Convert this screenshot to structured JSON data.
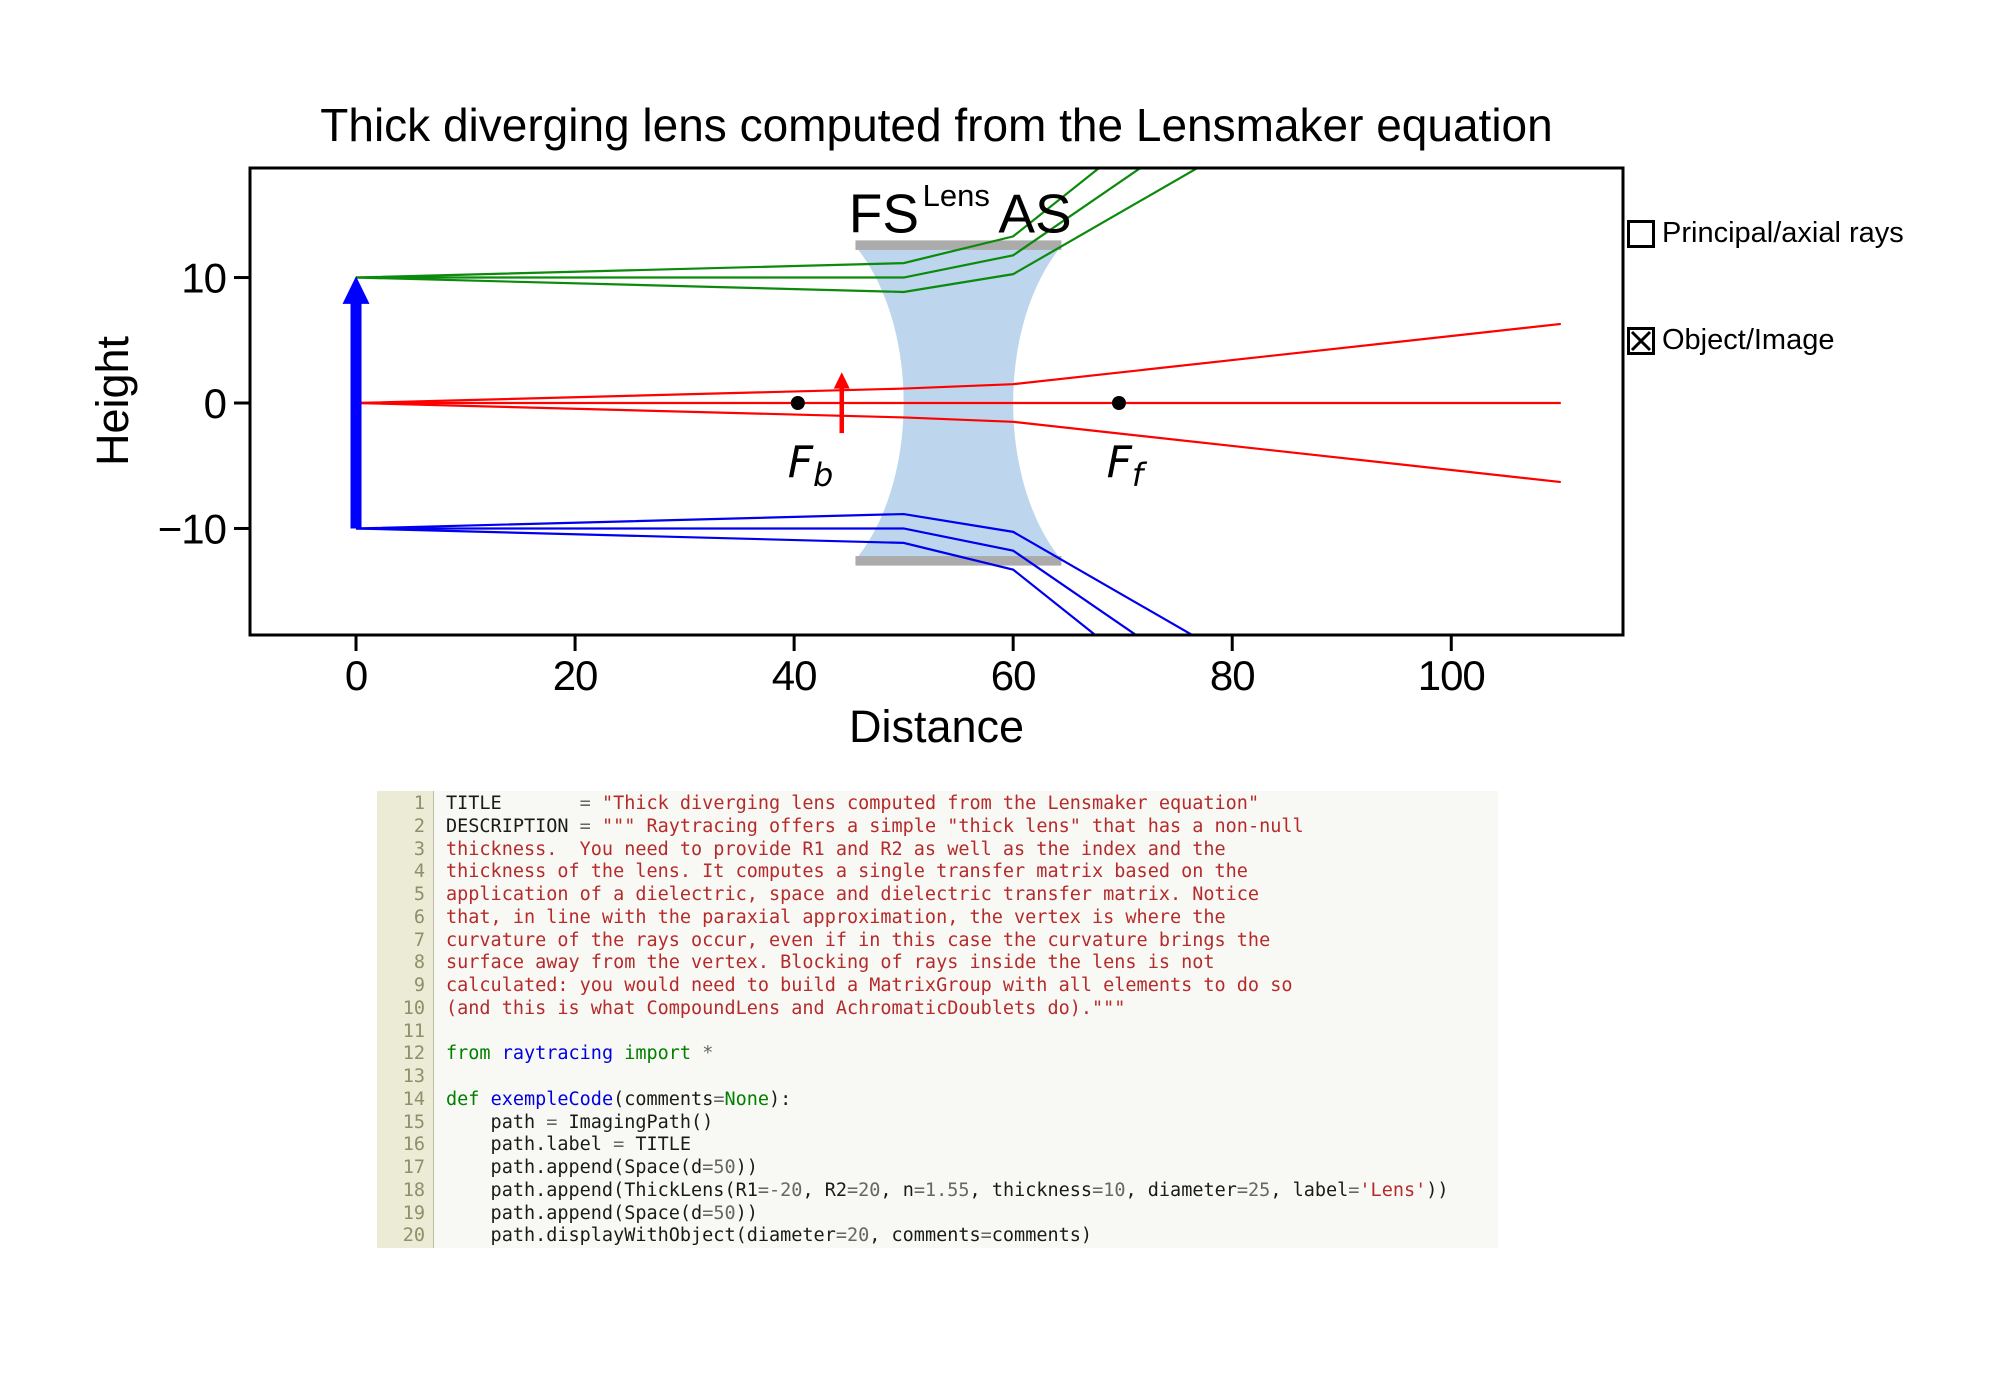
{
  "figure": {
    "title": "Thick diverging lens computed from the Lensmaker equation",
    "background": "#ffffff"
  },
  "legend": {
    "items": [
      {
        "label": "Principal/axial rays",
        "checked": false
      },
      {
        "label": "Object/Image",
        "checked": true
      }
    ]
  },
  "chart_data": {
    "type": "line",
    "title": "Thick diverging lens computed from the Lensmaker equation",
    "xlabel": "Distance",
    "ylabel": "Height",
    "xlim": [
      -9.68,
      115.68
    ],
    "ylim": [
      -18.49,
      18.73
    ],
    "xticks": [
      0,
      20,
      40,
      60,
      80,
      100
    ],
    "yticks": [
      -10,
      0,
      10
    ],
    "grid": false,
    "legend_position": "outside-right",
    "lens": {
      "R1": -20,
      "R2": 20,
      "n": 1.55,
      "thickness": 10,
      "diameter": 25,
      "front_vertex_x": 50,
      "back_vertex_x": 60,
      "edge_left_x": 45.6,
      "edge_right_x": 64.4,
      "half_diameter": 12.5,
      "fill_color": "#bdd6ee",
      "aperture_bar_color": "#ababab",
      "aperture_bar_half_thickness": 0.38,
      "aperture_bar_center_y": 12.58,
      "labels": {
        "fs": {
          "text": "FS",
          "x": 48.2,
          "baseline_y": 13.6
        },
        "lens": {
          "text": "Lens",
          "x": 54.8,
          "baseline_y": 15.7
        },
        "as": {
          "text": "AS",
          "x": 62.0,
          "baseline_y": 13.6
        }
      }
    },
    "focal_points": [
      {
        "label": "F",
        "sub": "b",
        "x": 40.34,
        "y": 0,
        "label_x": 41.5,
        "label_baseline_y": -5.9
      },
      {
        "label": "F",
        "sub": "f",
        "x": 69.66,
        "y": 0,
        "label_x": 70.2,
        "label_baseline_y": -5.9
      }
    ],
    "object_arrow": {
      "x": 0,
      "y_from": -10,
      "y_to": 10,
      "color": "#0000ff"
    },
    "image_arrow": {
      "x": 44.35,
      "y_from": -2.4,
      "y_to": 2.45,
      "color": "#ff0000"
    },
    "ray_series": [
      {
        "name": "rays-from-object-top",
        "color": "#0b8a0b",
        "polylines": [
          [
            [
              0,
              10
            ],
            [
              50,
              11.15
            ],
            [
              60,
              13.28
            ],
            [
              70,
              20.23
            ]
          ],
          [
            [
              0,
              10
            ],
            [
              50,
              10.0
            ],
            [
              60,
              11.77
            ],
            [
              73,
              19.56
            ]
          ],
          [
            [
              0,
              10
            ],
            [
              50,
              8.85
            ],
            [
              60,
              10.27
            ],
            [
              78,
              19.32
            ]
          ]
        ]
      },
      {
        "name": "rays-from-axis",
        "color": "#ff0000",
        "polylines": [
          [
            [
              0,
              0
            ],
            [
              50,
              1.15
            ],
            [
              60,
              1.5
            ],
            [
              110,
              6.3
            ]
          ],
          [
            [
              0,
              0
            ],
            [
              110,
              0
            ]
          ],
          [
            [
              0,
              0
            ],
            [
              50,
              -1.15
            ],
            [
              60,
              -1.5
            ],
            [
              110,
              -6.3
            ]
          ]
        ]
      },
      {
        "name": "rays-from-object-bottom",
        "color": "#0000ee",
        "polylines": [
          [
            [
              0,
              -10
            ],
            [
              50,
              -8.85
            ],
            [
              60,
              -10.27
            ],
            [
              78,
              -19.32
            ]
          ],
          [
            [
              0,
              -10
            ],
            [
              50,
              -10.0
            ],
            [
              60,
              -11.77
            ],
            [
              73,
              -19.56
            ]
          ],
          [
            [
              0,
              -10
            ],
            [
              50,
              -11.15
            ],
            [
              60,
              -13.28
            ],
            [
              70,
              -20.23
            ]
          ]
        ]
      }
    ]
  },
  "code_panel": {
    "background": "#f8f8f4",
    "gutter_background": "#ebebd6",
    "line_number_color": "#8f8f6b",
    "token_colors": {
      "t": "#1a1a1a",
      "s": "#b52b2b",
      "k": "#008000",
      "f": "#0000e0",
      "c": "#008000",
      "m": "#666666",
      "o": "#666666"
    },
    "lines": [
      {
        "num": 1,
        "tokens": [
          [
            "t",
            "TITLE       "
          ],
          [
            "o",
            "= "
          ],
          [
            "s",
            "\"Thick diverging lens computed from the Lensmaker equation\""
          ]
        ]
      },
      {
        "num": 2,
        "tokens": [
          [
            "t",
            "DESCRIPTION "
          ],
          [
            "o",
            "= "
          ],
          [
            "s",
            "\"\"\" Raytracing offers a simple \"thick lens\" that has a non-null"
          ]
        ]
      },
      {
        "num": 3,
        "tokens": [
          [
            "s",
            "thickness.  You need to provide R1 and R2 as well as the index and the"
          ]
        ]
      },
      {
        "num": 4,
        "tokens": [
          [
            "s",
            "thickness of the lens. It computes a single transfer matrix based on the"
          ]
        ]
      },
      {
        "num": 5,
        "tokens": [
          [
            "s",
            "application of a dielectric, space and dielectric transfer matrix. Notice"
          ]
        ]
      },
      {
        "num": 6,
        "tokens": [
          [
            "s",
            "that, in line with the paraxial approximation, the vertex is where the"
          ]
        ]
      },
      {
        "num": 7,
        "tokens": [
          [
            "s",
            "curvature of the rays occur, even if in this case the curvature brings the"
          ]
        ]
      },
      {
        "num": 8,
        "tokens": [
          [
            "s",
            "surface away from the vertex. Blocking of rays inside the lens is not"
          ]
        ]
      },
      {
        "num": 9,
        "tokens": [
          [
            "s",
            "calculated: you would need to build a MatrixGroup with all elements to do so"
          ]
        ]
      },
      {
        "num": 10,
        "tokens": [
          [
            "s",
            "(and this is what CompoundLens and AchromaticDoublets do).\"\"\""
          ]
        ]
      },
      {
        "num": 11,
        "tokens": []
      },
      {
        "num": 12,
        "tokens": [
          [
            "k",
            "from "
          ],
          [
            "f",
            "raytracing "
          ],
          [
            "k",
            "import "
          ],
          [
            "o",
            "*"
          ]
        ]
      },
      {
        "num": 13,
        "tokens": []
      },
      {
        "num": 14,
        "tokens": [
          [
            "k",
            "def "
          ],
          [
            "f",
            "exempleCode"
          ],
          [
            "t",
            "(comments"
          ],
          [
            "o",
            "="
          ],
          [
            "c",
            "None"
          ],
          [
            "t",
            "):"
          ]
        ]
      },
      {
        "num": 15,
        "tokens": [
          [
            "t",
            "    path "
          ],
          [
            "o",
            "= "
          ],
          [
            "t",
            "ImagingPath()"
          ]
        ]
      },
      {
        "num": 16,
        "tokens": [
          [
            "t",
            "    path.label "
          ],
          [
            "o",
            "= "
          ],
          [
            "t",
            "TITLE"
          ]
        ]
      },
      {
        "num": 17,
        "tokens": [
          [
            "t",
            "    path.append(Space(d"
          ],
          [
            "o",
            "="
          ],
          [
            "m",
            "50"
          ],
          [
            "t",
            "))"
          ]
        ]
      },
      {
        "num": 18,
        "tokens": [
          [
            "t",
            "    path.append(ThickLens(R1"
          ],
          [
            "o",
            "="
          ],
          [
            "m",
            "-20"
          ],
          [
            "t",
            ", R2"
          ],
          [
            "o",
            "="
          ],
          [
            "m",
            "20"
          ],
          [
            "t",
            ", n"
          ],
          [
            "o",
            "="
          ],
          [
            "m",
            "1.55"
          ],
          [
            "t",
            ", thickness"
          ],
          [
            "o",
            "="
          ],
          [
            "m",
            "10"
          ],
          [
            "t",
            ", diameter"
          ],
          [
            "o",
            "="
          ],
          [
            "m",
            "25"
          ],
          [
            "t",
            ", label"
          ],
          [
            "o",
            "="
          ],
          [
            "s",
            "'Lens'"
          ],
          [
            "t",
            "))"
          ]
        ]
      },
      {
        "num": 19,
        "tokens": [
          [
            "t",
            "    path.append(Space(d"
          ],
          [
            "o",
            "="
          ],
          [
            "m",
            "50"
          ],
          [
            "t",
            "))"
          ]
        ]
      },
      {
        "num": 20,
        "tokens": [
          [
            "t",
            "    path.displayWithObject(diameter"
          ],
          [
            "o",
            "="
          ],
          [
            "m",
            "20"
          ],
          [
            "t",
            ", comments"
          ],
          [
            "o",
            "="
          ],
          [
            "t",
            "comments)"
          ]
        ]
      }
    ]
  }
}
